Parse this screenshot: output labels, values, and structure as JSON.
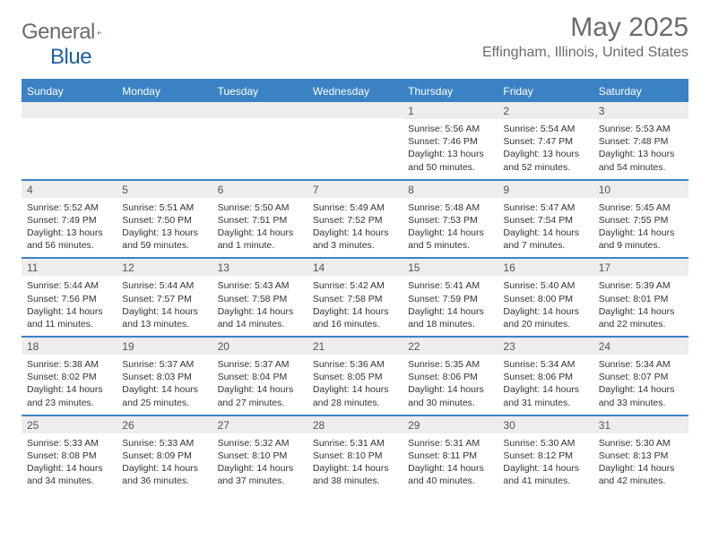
{
  "logo": {
    "word1": "General",
    "word2": "Blue"
  },
  "title": {
    "month": "May 2025",
    "location": "Effingham, Illinois, United States"
  },
  "colors": {
    "accent": "#3b82c4",
    "header_text": "#6b6b6b",
    "daynum_bg": "#ededed"
  },
  "daysOfWeek": [
    "Sunday",
    "Monday",
    "Tuesday",
    "Wednesday",
    "Thursday",
    "Friday",
    "Saturday"
  ],
  "firstDayIndex": 4,
  "daysInMonth": 31,
  "days": [
    {
      "n": 1,
      "sunrise": "5:56 AM",
      "sunset": "7:46 PM",
      "daylight": "13 hours and 50 minutes."
    },
    {
      "n": 2,
      "sunrise": "5:54 AM",
      "sunset": "7:47 PM",
      "daylight": "13 hours and 52 minutes."
    },
    {
      "n": 3,
      "sunrise": "5:53 AM",
      "sunset": "7:48 PM",
      "daylight": "13 hours and 54 minutes."
    },
    {
      "n": 4,
      "sunrise": "5:52 AM",
      "sunset": "7:49 PM",
      "daylight": "13 hours and 56 minutes."
    },
    {
      "n": 5,
      "sunrise": "5:51 AM",
      "sunset": "7:50 PM",
      "daylight": "13 hours and 59 minutes."
    },
    {
      "n": 6,
      "sunrise": "5:50 AM",
      "sunset": "7:51 PM",
      "daylight": "14 hours and 1 minute."
    },
    {
      "n": 7,
      "sunrise": "5:49 AM",
      "sunset": "7:52 PM",
      "daylight": "14 hours and 3 minutes."
    },
    {
      "n": 8,
      "sunrise": "5:48 AM",
      "sunset": "7:53 PM",
      "daylight": "14 hours and 5 minutes."
    },
    {
      "n": 9,
      "sunrise": "5:47 AM",
      "sunset": "7:54 PM",
      "daylight": "14 hours and 7 minutes."
    },
    {
      "n": 10,
      "sunrise": "5:45 AM",
      "sunset": "7:55 PM",
      "daylight": "14 hours and 9 minutes."
    },
    {
      "n": 11,
      "sunrise": "5:44 AM",
      "sunset": "7:56 PM",
      "daylight": "14 hours and 11 minutes."
    },
    {
      "n": 12,
      "sunrise": "5:44 AM",
      "sunset": "7:57 PM",
      "daylight": "14 hours and 13 minutes."
    },
    {
      "n": 13,
      "sunrise": "5:43 AM",
      "sunset": "7:58 PM",
      "daylight": "14 hours and 14 minutes."
    },
    {
      "n": 14,
      "sunrise": "5:42 AM",
      "sunset": "7:58 PM",
      "daylight": "14 hours and 16 minutes."
    },
    {
      "n": 15,
      "sunrise": "5:41 AM",
      "sunset": "7:59 PM",
      "daylight": "14 hours and 18 minutes."
    },
    {
      "n": 16,
      "sunrise": "5:40 AM",
      "sunset": "8:00 PM",
      "daylight": "14 hours and 20 minutes."
    },
    {
      "n": 17,
      "sunrise": "5:39 AM",
      "sunset": "8:01 PM",
      "daylight": "14 hours and 22 minutes."
    },
    {
      "n": 18,
      "sunrise": "5:38 AM",
      "sunset": "8:02 PM",
      "daylight": "14 hours and 23 minutes."
    },
    {
      "n": 19,
      "sunrise": "5:37 AM",
      "sunset": "8:03 PM",
      "daylight": "14 hours and 25 minutes."
    },
    {
      "n": 20,
      "sunrise": "5:37 AM",
      "sunset": "8:04 PM",
      "daylight": "14 hours and 27 minutes."
    },
    {
      "n": 21,
      "sunrise": "5:36 AM",
      "sunset": "8:05 PM",
      "daylight": "14 hours and 28 minutes."
    },
    {
      "n": 22,
      "sunrise": "5:35 AM",
      "sunset": "8:06 PM",
      "daylight": "14 hours and 30 minutes."
    },
    {
      "n": 23,
      "sunrise": "5:34 AM",
      "sunset": "8:06 PM",
      "daylight": "14 hours and 31 minutes."
    },
    {
      "n": 24,
      "sunrise": "5:34 AM",
      "sunset": "8:07 PM",
      "daylight": "14 hours and 33 minutes."
    },
    {
      "n": 25,
      "sunrise": "5:33 AM",
      "sunset": "8:08 PM",
      "daylight": "14 hours and 34 minutes."
    },
    {
      "n": 26,
      "sunrise": "5:33 AM",
      "sunset": "8:09 PM",
      "daylight": "14 hours and 36 minutes."
    },
    {
      "n": 27,
      "sunrise": "5:32 AM",
      "sunset": "8:10 PM",
      "daylight": "14 hours and 37 minutes."
    },
    {
      "n": 28,
      "sunrise": "5:31 AM",
      "sunset": "8:10 PM",
      "daylight": "14 hours and 38 minutes."
    },
    {
      "n": 29,
      "sunrise": "5:31 AM",
      "sunset": "8:11 PM",
      "daylight": "14 hours and 40 minutes."
    },
    {
      "n": 30,
      "sunrise": "5:30 AM",
      "sunset": "8:12 PM",
      "daylight": "14 hours and 41 minutes."
    },
    {
      "n": 31,
      "sunrise": "5:30 AM",
      "sunset": "8:13 PM",
      "daylight": "14 hours and 42 minutes."
    }
  ],
  "labels": {
    "sunrise_prefix": "Sunrise: ",
    "sunset_prefix": "Sunset: ",
    "daylight_prefix": "Daylight: "
  }
}
